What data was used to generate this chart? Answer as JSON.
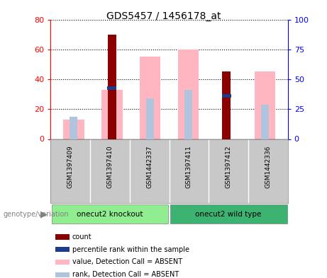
{
  "title": "GDS5457 / 1456178_at",
  "samples": [
    "GSM1397409",
    "GSM1397410",
    "GSM1442337",
    "GSM1397411",
    "GSM1397412",
    "GSM1442336"
  ],
  "groups": [
    {
      "label": "onecut2 knockout",
      "n": 3,
      "color": "#90EE90"
    },
    {
      "label": "onecut2 wild type",
      "n": 3,
      "color": "#3CB371"
    }
  ],
  "count_values": [
    0,
    70,
    0,
    0,
    45,
    0
  ],
  "percentile_rank_values": [
    0,
    34,
    0,
    0,
    29,
    0
  ],
  "absent_value_bars": [
    13,
    33,
    55,
    60,
    0,
    45
  ],
  "absent_rank_bars": [
    15,
    0,
    27,
    33,
    0,
    23
  ],
  "count_color": "#8B0000",
  "percentile_color": "#1E3A8A",
  "absent_value_color": "#FFB6C1",
  "absent_rank_color": "#B0C4DE",
  "ylim_left": [
    0,
    80
  ],
  "ylim_right": [
    0,
    100
  ],
  "yticks_left": [
    0,
    20,
    40,
    60,
    80
  ],
  "yticks_right": [
    0,
    25,
    50,
    75,
    100
  ],
  "grid_values": [
    20,
    40,
    60,
    80
  ],
  "bg_color": "#FFFFFF",
  "legend_items": [
    {
      "label": "count",
      "color": "#8B0000"
    },
    {
      "label": "percentile rank within the sample",
      "color": "#1E3A8A"
    },
    {
      "label": "value, Detection Call = ABSENT",
      "color": "#FFB6C1"
    },
    {
      "label": "rank, Detection Call = ABSENT",
      "color": "#B0C4DE"
    }
  ]
}
